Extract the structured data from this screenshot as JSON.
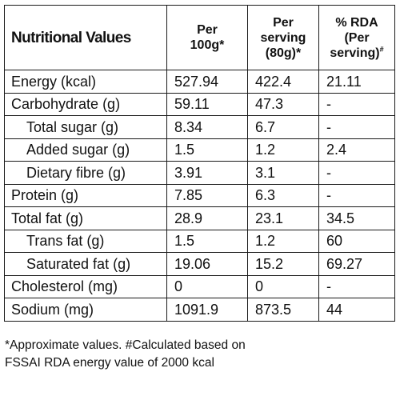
{
  "header": {
    "title": "Nutritional Values",
    "per100": [
      "Per",
      "100g*"
    ],
    "perServing": [
      "Per",
      "serving",
      "(80g)*"
    ],
    "rda": [
      "% RDA",
      "(Per",
      "serving)"
    ],
    "rdaMark": "#"
  },
  "rows": [
    {
      "name": "Energy (kcal)",
      "per100": "527.94",
      "serving": "422.4",
      "rda": "21.11"
    },
    {
      "name": "Carbohydrate (g)",
      "per100": "59.11",
      "serving": "47.3",
      "rda": "-"
    },
    {
      "name": "Total sugar (g)",
      "per100": "8.34",
      "serving": "6.7",
      "rda": "-"
    },
    {
      "name": "Added sugar (g)",
      "per100": "1.5",
      "serving": "1.2",
      "rda": "2.4"
    },
    {
      "name": "Dietary fibre (g)",
      "per100": "3.91",
      "serving": "3.1",
      "rda": "-"
    },
    {
      "name": "Protein (g)",
      "per100": "7.85",
      "serving": "6.3",
      "rda": "-"
    },
    {
      "name": "Total fat (g)",
      "per100": "28.9",
      "serving": "23.1",
      "rda": "34.5"
    },
    {
      "name": "Trans fat (g)",
      "per100": "1.5",
      "serving": "1.2",
      "rda": "60"
    },
    {
      "name": "Saturated fat (g)",
      "per100": "19.06",
      "serving": "15.2",
      "rda": "69.27"
    },
    {
      "name": "Cholesterol (mg)",
      "per100": "0",
      "serving": "0",
      "rda": "-"
    },
    {
      "name": "Sodium (mg)",
      "per100": "1091.9",
      "serving": "873.5",
      "rda": "44"
    }
  ],
  "footnote": {
    "line1": "*Approximate values. #Calculated based on",
    "line2": "FSSAI RDA energy value of 2000 kcal"
  }
}
